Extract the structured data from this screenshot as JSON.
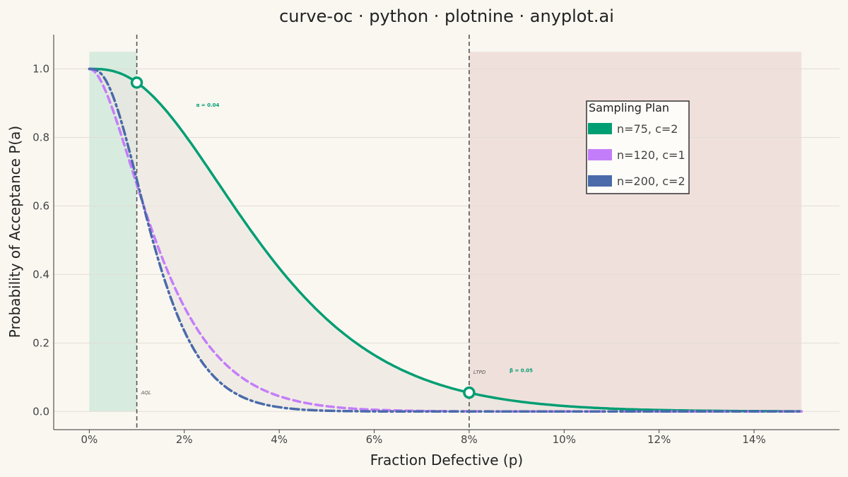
{
  "chart_data": {
    "type": "line",
    "title": "curve-oc · python · plotnine · anyplot.ai",
    "xlabel": "Fraction Defective (p)",
    "ylabel": "Probability of Acceptance P(a)",
    "xlim": [
      -0.0075,
      0.158
    ],
    "ylim": [
      -0.053,
      1.1
    ],
    "x_ticks": [
      0,
      0.02,
      0.04,
      0.06,
      0.08,
      0.1,
      0.12,
      0.14
    ],
    "x_tick_labels": [
      "0%",
      "2%",
      "4%",
      "6%",
      "8%",
      "10%",
      "12%",
      "14%"
    ],
    "y_ticks": [
      0,
      0.2,
      0.4,
      0.6,
      0.8,
      1.0
    ],
    "y_tick_labels": [
      "0.0",
      "0.2",
      "0.4",
      "0.6",
      "0.8",
      "1.0"
    ],
    "grid": "horizontal",
    "legend_title": "Sampling Plan",
    "legend_position": "top-right",
    "series": [
      {
        "name": "n=75, c=2",
        "n": 75,
        "c": 2,
        "color": "#009e73",
        "line_style": "solid"
      },
      {
        "name": "n=120, c=1",
        "n": 120,
        "c": 1,
        "color": "#c47dfa",
        "line_style": "dashed"
      },
      {
        "name": "n=200, c=2",
        "n": 200,
        "c": 2,
        "color": "#4a6aaa",
        "line_style": "dashdot"
      }
    ],
    "x_range": [
      0,
      0.15
    ],
    "regions": [
      {
        "x0": 0,
        "x1": 0.01,
        "color": "#d7ebdf"
      },
      {
        "x0": 0.08,
        "x1": 0.15,
        "color": "#f0e0dc"
      }
    ],
    "reference_lines": [
      {
        "x": 0.01,
        "label": "AQL",
        "label_y": 0.05
      },
      {
        "x": 0.08,
        "label": "LTPD",
        "label_y": 0.11
      }
    ],
    "points": [
      {
        "x": 0.01,
        "y": 0.96,
        "label": "α = 0.04",
        "label_x": 0.0225,
        "label_y": 0.89
      },
      {
        "x": 0.08,
        "y": 0.055,
        "label": "β = 0.05",
        "label_x": 0.0885,
        "label_y": 0.115
      }
    ]
  }
}
